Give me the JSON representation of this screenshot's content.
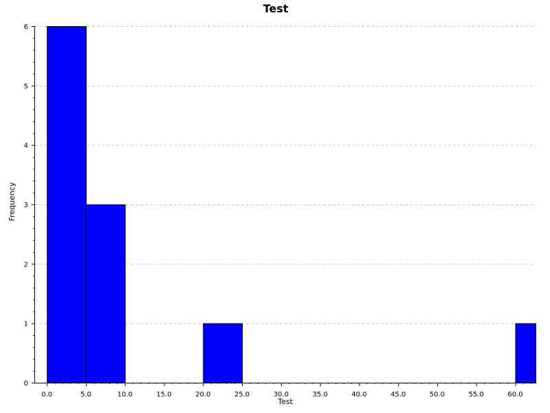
{
  "chart_data": {
    "type": "bar",
    "title": "Test",
    "xlabel": "Test",
    "ylabel": "Frequency",
    "bar_color": "#0000ff",
    "grid": true,
    "grid_color": "#c8c8c8",
    "xlim": [
      -1.6,
      62.6
    ],
    "ylim": [
      0,
      6
    ],
    "x_ticks": [
      "0.0",
      "5.0",
      "10.0",
      "15.0",
      "20.0",
      "25.0",
      "30.0",
      "35.0",
      "40.0",
      "45.0",
      "50.0",
      "55.0",
      "60.0"
    ],
    "y_ticks": [
      "0",
      "1",
      "2",
      "3",
      "4",
      "5",
      "6"
    ],
    "bins": [
      {
        "start": 0.0,
        "end": 5.0,
        "count": 6
      },
      {
        "start": 5.0,
        "end": 10.0,
        "count": 3
      },
      {
        "start": 20.0,
        "end": 25.0,
        "count": 1
      },
      {
        "start": 60.0,
        "end": 65.0,
        "count": 1
      }
    ]
  }
}
